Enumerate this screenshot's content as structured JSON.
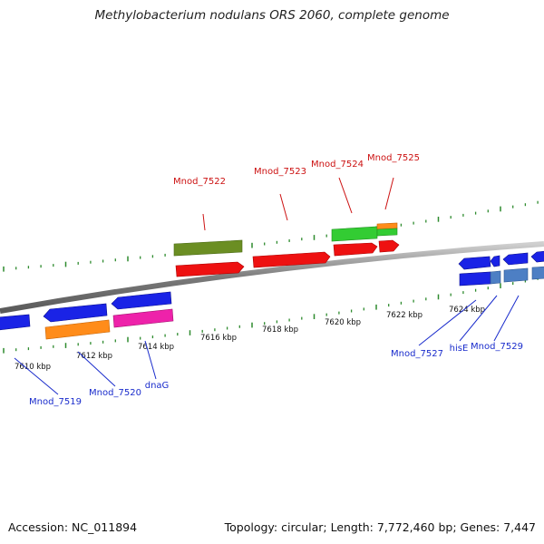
{
  "title": "Methylobacterium nodulans ORS 2060, complete genome",
  "accession": "Accession: NC_011894",
  "summary": "Topology: circular; Length: 7,772,460 bp; Genes: 7,447",
  "ruler_labels": [
    "7610 kbp",
    "7612 kbp",
    "7614 kbp",
    "7616 kbp",
    "7618 kbp",
    "7620 kbp",
    "7622 kbp",
    "7624 kbp"
  ],
  "top_gene_labels": [
    "Mnod_7522",
    "Mnod_7523",
    "Mnod_7524",
    "Mnod_7525"
  ],
  "bottom_gene_labels": [
    "Mnod_7519",
    "Mnod_7520",
    "dnaG",
    "Mnod_7527",
    "hisE",
    "Mnod_7529"
  ],
  "colors": {
    "backbone": "#8c8c8c",
    "tick": "#2e8b2e",
    "top_label": "#cc1111",
    "bottom_label": "#1a2ccc",
    "blue": "#1a23e6",
    "red": "#ee1111",
    "green": "#33cc33",
    "olive": "#6b8e23",
    "orange": "#ff8c1a",
    "magenta": "#ee22aa",
    "steelblue": "#4d7fc4"
  }
}
